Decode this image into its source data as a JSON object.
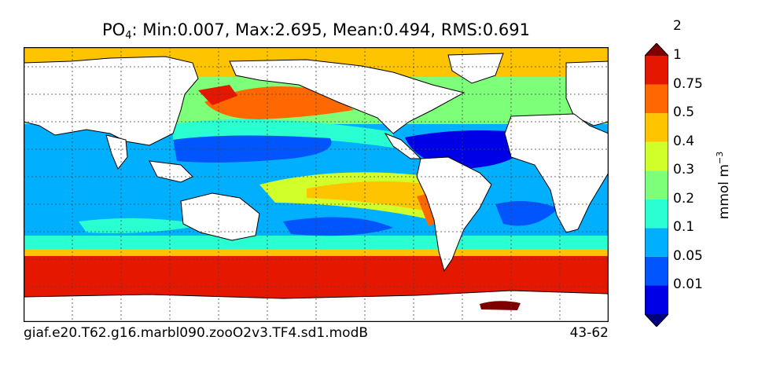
{
  "title": {
    "variable": "PO",
    "subscript": "4",
    "stats": ": Min:0.007, Max:2.695, Mean:0.494, RMS:0.691"
  },
  "footer": {
    "case_name": "giaf.e20.T62.g16.marbl090.zooO2v3.TF4.sd1.modB",
    "years": "43-62"
  },
  "colorbar": {
    "label_base": "mmol m",
    "label_exp": "−3",
    "ticks": [
      "0.01",
      "0.05",
      "0.1",
      "0.2",
      "0.3",
      "0.4",
      "0.5",
      "0.75",
      "1",
      "2"
    ],
    "colors": [
      "#00007f",
      "#0000e6",
      "#0055ff",
      "#00b0ff",
      "#29ffd0",
      "#7dff7a",
      "#d0ff29",
      "#ffc400",
      "#ff6800",
      "#e61700",
      "#7f0000"
    ]
  },
  "map": {
    "land_color": "#ffffff",
    "gridlines": true
  }
}
